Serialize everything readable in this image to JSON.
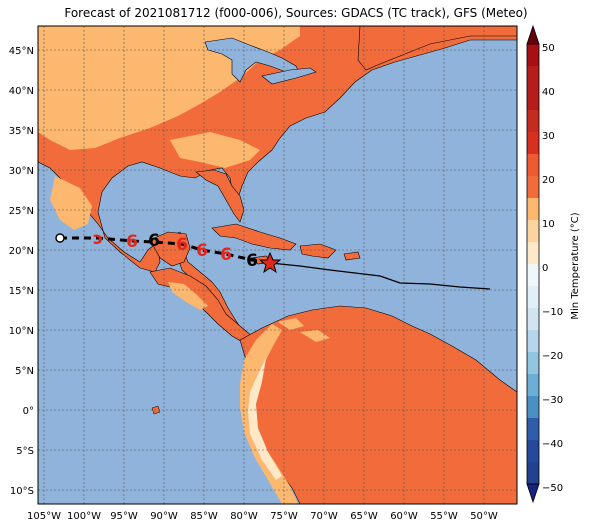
{
  "title": "Forecast of 2021081712 (f000-006), Sources: GDACS (TC track), GFS (Meteo)",
  "map": {
    "lon_range": [
      -105,
      -46
    ],
    "lat_range": [
      -12,
      48
    ],
    "lon_ticks": [
      "105°W",
      "100°W",
      "95°W",
      "90°W",
      "85°W",
      "80°W",
      "75°W",
      "70°W",
      "65°W",
      "60°W",
      "55°W",
      "50°W"
    ],
    "lat_ticks": [
      "45°N",
      "40°N",
      "35°N",
      "30°N",
      "25°N",
      "20°N",
      "15°N",
      "10°N",
      "5°N",
      "0°",
      "5°S",
      "10°S"
    ],
    "colors": {
      "ocean": "#8fb3da",
      "temp_20_30": "#f26b3b",
      "temp_10_20": "#fdb870",
      "temp_0_10": "#fee8c8",
      "coast": "#000000",
      "grid": "#555555",
      "track_past": "#000000",
      "storm_red": "#e3261b"
    }
  },
  "storm": {
    "current_marker": "red-star",
    "forecast_symbols": [
      "hurricane-black",
      "hurricane-red",
      "hurricane-red",
      "hurricane-black",
      "hurricane-red",
      "hurricane-red",
      "hurricane-black"
    ],
    "end_marker": "open-circle"
  },
  "colorbar": {
    "label": "Min Temperature (°C)",
    "ticks": [
      "50",
      "40",
      "30",
      "20",
      "10",
      "0",
      "−10",
      "−20",
      "−30",
      "−40",
      "−50"
    ],
    "colors": [
      "#67000d",
      "#a50f15",
      "#d7301f",
      "#f26b3b",
      "#fdb870",
      "#fee8c8",
      "#f0f7fb",
      "#d1e5f0",
      "#92c5de",
      "#4a90c2",
      "#2f5da8",
      "#23418f",
      "#1a237e"
    ]
  }
}
